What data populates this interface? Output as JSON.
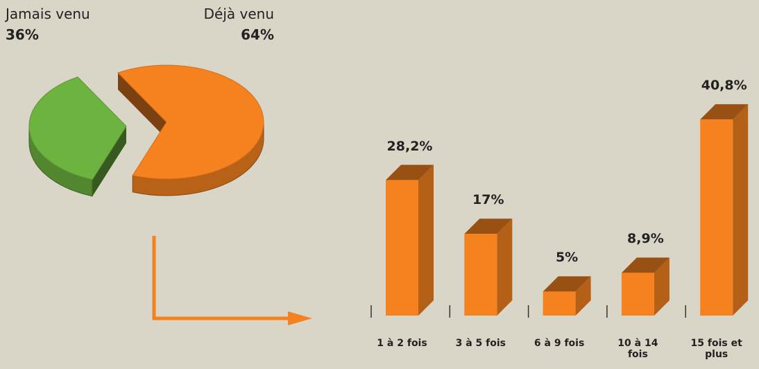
{
  "chart_data": [
    {
      "type": "pie",
      "categories": [
        "Jamais venu",
        "Déjà venu"
      ],
      "values": [
        36,
        64
      ],
      "value_labels": [
        "36%",
        "64%"
      ],
      "colors": [
        "#6db33f",
        "#f5821f"
      ]
    },
    {
      "type": "bar",
      "categories": [
        "1 à 2 fois",
        "3 à 5 fois",
        "6 à 9 fois",
        "10 à 14 fois",
        "15 fois et plus"
      ],
      "values": [
        28.2,
        17,
        5,
        8.9,
        40.8
      ],
      "value_labels": [
        "28,2%",
        "17%",
        "5%",
        "8,9%",
        "40,8%"
      ],
      "color": "#f5821f"
    }
  ]
}
